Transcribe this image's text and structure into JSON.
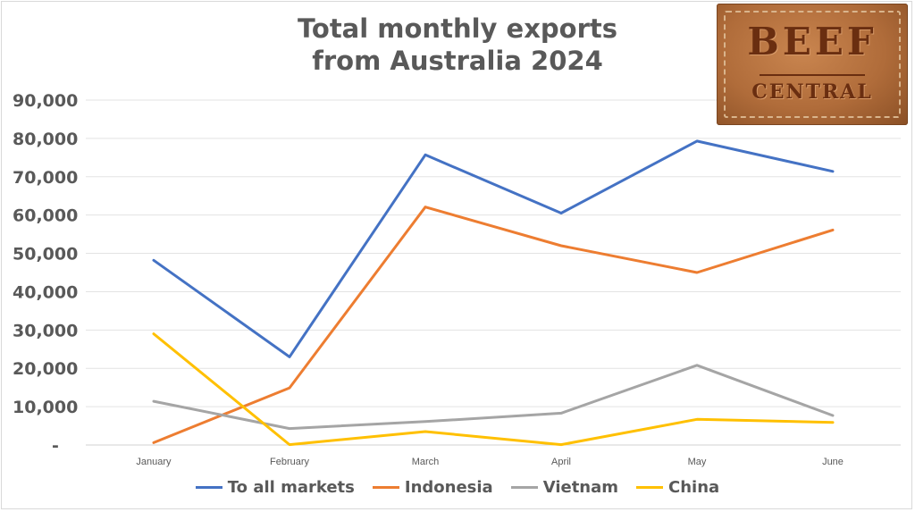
{
  "chart_data": {
    "type": "line",
    "title": [
      "Total monthly exports",
      "from Australia 2024"
    ],
    "categories": [
      "January",
      "February",
      "March",
      "April",
      "May",
      "June"
    ],
    "y_ticks": [
      "90,000",
      "80,000",
      "70,000",
      "60,000",
      "50,000",
      "40,000",
      "30,000",
      "20,000",
      "10,000",
      "-"
    ],
    "ylim": [
      0,
      90000
    ],
    "grid": "horizontal",
    "legend_position": "bottom",
    "series": [
      {
        "name": "To all markets",
        "color": "#4472c4",
        "values": [
          48200,
          23000,
          75700,
          60500,
          79300,
          71400
        ]
      },
      {
        "name": "Indonesia",
        "color": "#ed7d31",
        "values": [
          600,
          14900,
          62100,
          52000,
          45000,
          56100
        ]
      },
      {
        "name": "Vietnam",
        "color": "#a5a5a5",
        "values": [
          11400,
          4300,
          6100,
          8300,
          20800,
          7700
        ]
      },
      {
        "name": "China",
        "color": "#ffc000",
        "values": [
          29000,
          100,
          3500,
          100,
          6700,
          5900
        ]
      }
    ]
  },
  "logo": {
    "top": "BEEF",
    "bottom": "CENTRAL"
  }
}
